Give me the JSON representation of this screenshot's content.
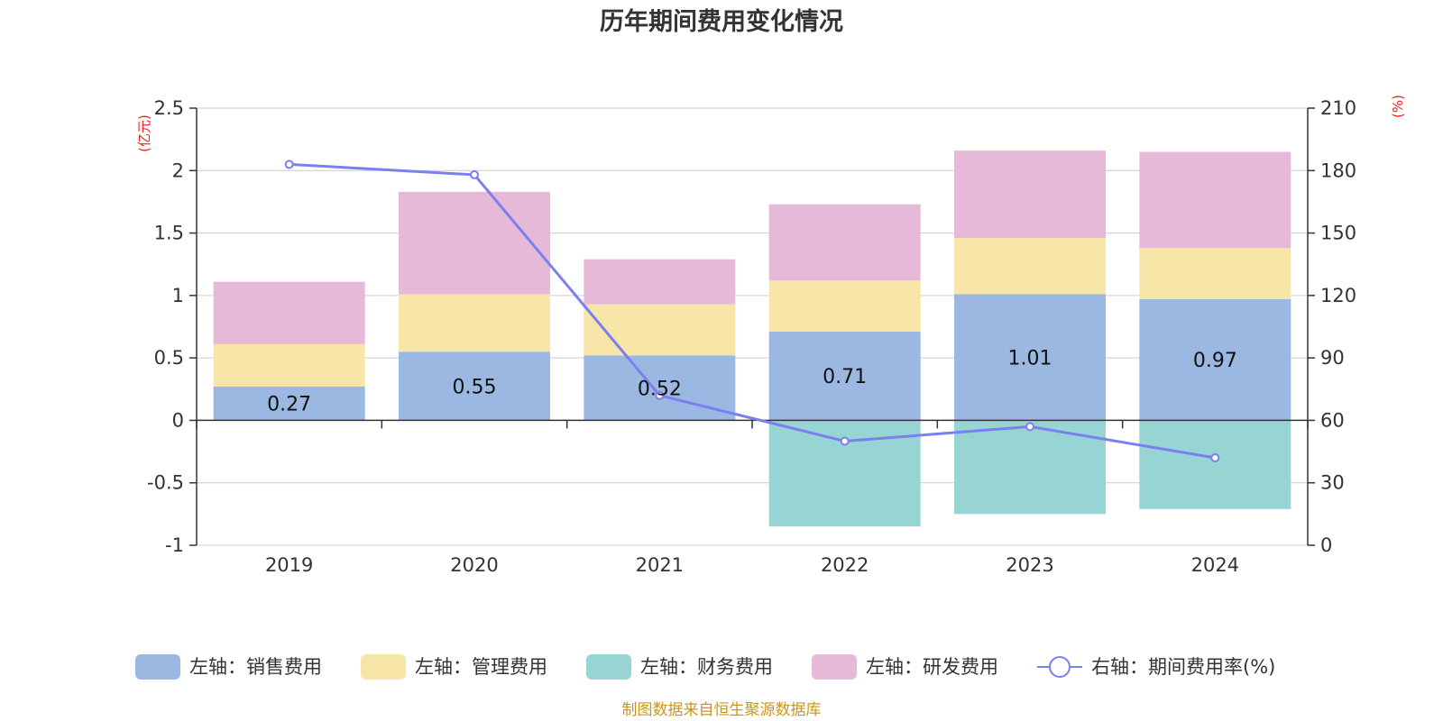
{
  "chart_data": {
    "type": "bar",
    "title": "历年期间费用变化情况",
    "categories": [
      "2019",
      "2020",
      "2021",
      "2022",
      "2023",
      "2024"
    ],
    "left_axis": {
      "unit": "(亿元)",
      "ylim": [
        -1,
        2.5
      ],
      "ticks": [
        "2.5",
        "2",
        "1.5",
        "1",
        "0.5",
        "0",
        "-0.5",
        "-1"
      ]
    },
    "right_axis": {
      "unit": "(%)",
      "ylim": [
        0,
        210
      ],
      "ticks": [
        "210",
        "180",
        "150",
        "120",
        "90",
        "60",
        "30",
        "0"
      ]
    },
    "series": [
      {
        "name": "左轴：销售费用",
        "type": "bar",
        "color": "#9bb8e2",
        "values": [
          0.27,
          0.55,
          0.52,
          0.71,
          1.01,
          0.97
        ]
      },
      {
        "name": "左轴：管理费用",
        "type": "bar",
        "color": "#f7e6a7",
        "values": [
          0.34,
          0.46,
          0.41,
          0.41,
          0.45,
          0.41
        ]
      },
      {
        "name": "左轴：财务费用",
        "type": "bar",
        "color": "#97d4d4",
        "values": [
          0.0,
          0.0,
          0.0,
          -0.85,
          -0.75,
          -0.71
        ]
      },
      {
        "name": "左轴：研发费用",
        "type": "bar",
        "color": "#e7b9d9",
        "values": [
          0.5,
          0.82,
          0.36,
          0.61,
          0.7,
          0.77
        ]
      },
      {
        "name": "右轴：期间费用率(%)",
        "type": "line",
        "color": "#7b7fef",
        "values": [
          183,
          178,
          72,
          50,
          57,
          42
        ]
      }
    ],
    "data_labels": [
      "0.27",
      "0.55",
      "0.52",
      "0.71",
      "1.01",
      "0.97"
    ],
    "grid": true,
    "legend_position": "bottom"
  },
  "source_note": "制图数据来自恒生聚源数据库"
}
